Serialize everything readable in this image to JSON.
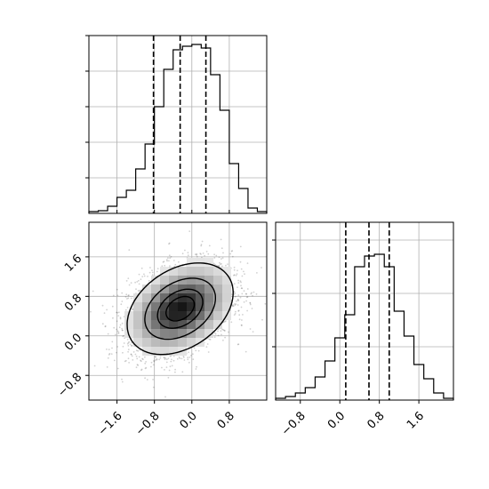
{
  "chart_data": [
    {
      "type": "histogram",
      "panel": "x-marginal",
      "xlim": [
        -2.2,
        1.6
      ],
      "ylim": [
        0,
        1.0
      ],
      "grid": true,
      "bins": {
        "edges": [
          -2.2,
          -2.0,
          -1.8,
          -1.6,
          -1.4,
          -1.2,
          -1.0,
          -0.8,
          -0.6,
          -0.4,
          -0.2,
          0.0,
          0.2,
          0.4,
          0.6,
          0.8,
          1.0,
          1.2,
          1.4,
          1.6
        ],
        "values": [
          0.01,
          0.015,
          0.04,
          0.09,
          0.13,
          0.25,
          0.39,
          0.6,
          0.81,
          0.92,
          0.94,
          0.95,
          0.93,
          0.78,
          0.58,
          0.28,
          0.14,
          0.03,
          0.01
        ]
      },
      "quantile_lines": [
        -0.82,
        -0.25,
        0.3
      ]
    },
    {
      "type": "heatmap",
      "panel": "2d-density",
      "xlim": [
        -2.2,
        1.6
      ],
      "ylim": [
        -1.3,
        2.3
      ],
      "xticks": [
        "−1.6",
        "−0.8",
        "0.0",
        "0.8"
      ],
      "xtick_values": [
        -1.6,
        -0.8,
        0.0,
        0.8
      ],
      "yticks": [
        "−0.8",
        "0.0",
        "0.8",
        "1.6"
      ],
      "ytick_values": [
        -0.8,
        0.0,
        0.8,
        1.6
      ],
      "center": [
        -0.25,
        0.55
      ],
      "sigma": [
        0.55,
        0.45
      ],
      "correlation": 0.35,
      "contour_levels": [
        0.12,
        0.39,
        0.68,
        0.86
      ]
    },
    {
      "type": "histogram",
      "panel": "y-marginal",
      "xlim": [
        -1.3,
        2.3
      ],
      "ylim": [
        0,
        1.0
      ],
      "grid": true,
      "xticks": [
        "−0.8",
        "0.0",
        "0.8",
        "1.6"
      ],
      "xtick_values": [
        -0.8,
        0.0,
        0.8,
        1.6
      ],
      "bins": {
        "edges": [
          -1.3,
          -1.1,
          -0.9,
          -0.7,
          -0.5,
          -0.3,
          -0.1,
          0.1,
          0.3,
          0.5,
          0.7,
          0.9,
          1.1,
          1.3,
          1.5,
          1.7,
          1.9,
          2.1,
          2.3
        ],
        "values": [
          0.01,
          0.02,
          0.04,
          0.07,
          0.13,
          0.22,
          0.35,
          0.48,
          0.75,
          0.81,
          0.82,
          0.75,
          0.5,
          0.36,
          0.2,
          0.12,
          0.04,
          0.01
        ]
      },
      "quantile_lines": [
        0.12,
        0.59,
        1.0
      ]
    }
  ]
}
